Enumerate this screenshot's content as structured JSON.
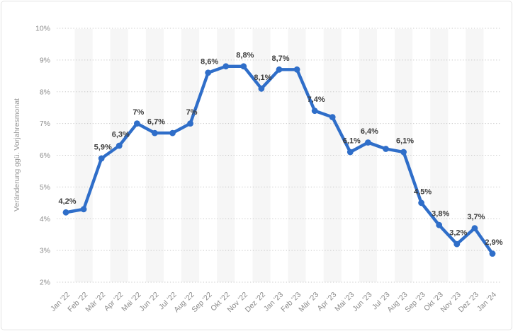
{
  "chart_data": {
    "type": "line",
    "title": "",
    "xlabel": "",
    "ylabel": "Veränderung ggü. Vorjahresmonat",
    "categories": [
      "Jan '22",
      "Feb '22",
      "Mär '22",
      "Apr '22",
      "Mai '22",
      "Jun '22",
      "Jul '22",
      "Aug '22",
      "Sep '22",
      "Okt '22",
      "Nov '22",
      "Dez '22",
      "Jan '23",
      "Feb '23",
      "Mär '23",
      "Apr '23",
      "Mai '23",
      "Jun '23",
      "Jul '23",
      "Aug '23",
      "Sep '23",
      "Okt '23",
      "Nov '23",
      "Dez '23",
      "Jan '24"
    ],
    "values": [
      4.2,
      4.3,
      5.9,
      6.3,
      7.0,
      6.7,
      6.7,
      7.0,
      8.6,
      8.8,
      8.8,
      8.1,
      8.7,
      8.7,
      7.4,
      7.2,
      6.1,
      6.4,
      6.2,
      6.1,
      4.5,
      3.8,
      3.2,
      3.7,
      2.9
    ],
    "point_labels": [
      "4,2%",
      null,
      "5,9%",
      "6,3%",
      "7%",
      "6,7%",
      null,
      "7%",
      "8,6%",
      null,
      "8,8%",
      "8,1%",
      "8,7%",
      null,
      "7,4%",
      null,
      "6,1%",
      "6,4%",
      null,
      "6,1%",
      "4,5%",
      "3,8%",
      "3,2%",
      "3,7%",
      "2,9%"
    ],
    "ylim": [
      2,
      10
    ],
    "yticks": [
      10,
      9,
      8,
      7,
      6,
      5,
      4,
      3,
      2
    ],
    "ytick_labels": [
      "10%",
      "9%",
      "8%",
      "7%",
      "6%",
      "5%",
      "4%",
      "3%",
      "2%"
    ],
    "grid": "horizontal-dotted",
    "legend": "none",
    "colors": {
      "line": "#2f6ec9",
      "marker": "#2f6ec9",
      "data_label": "#3d3d3d",
      "axis_text": "#8e8e8e",
      "gridline": "#c9c9c9",
      "stripe": "#f6f6f6",
      "background": "#ffffff",
      "border": "#e2e2e2"
    }
  }
}
